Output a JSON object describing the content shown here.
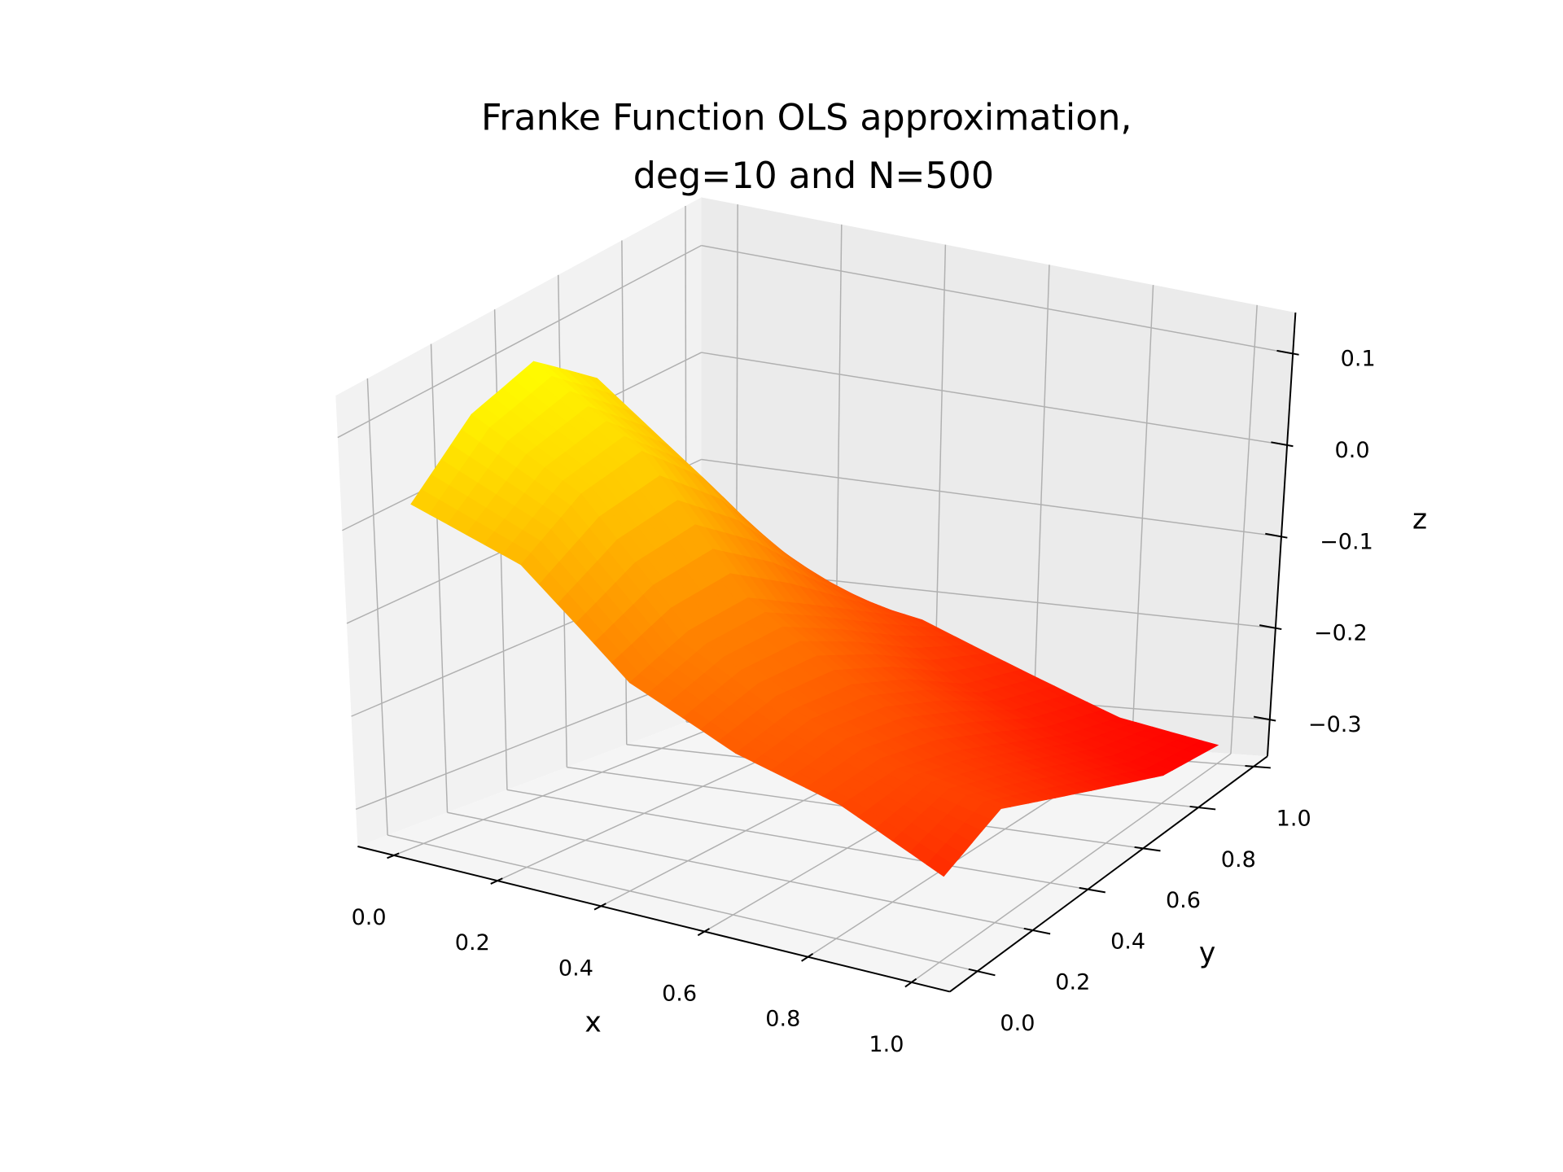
{
  "chart_data": {
    "type": "surface",
    "title": [
      "Franke Function OLS approximation,",
      "deg=10 and N=500"
    ],
    "x_label": "x",
    "y_label": "y",
    "z_label": "z",
    "x": [
      0,
      0.2,
      0.4,
      0.6,
      0.8,
      1
    ],
    "y": [
      0,
      0.2,
      0.4,
      0.6,
      0.8,
      1
    ],
    "z": [
      [
        0.02,
        0.08,
        0.1,
        0.05,
        -0.08,
        -0.2
      ],
      [
        -0.02,
        0.02,
        0.03,
        -0.03,
        -0.12,
        -0.2
      ],
      [
        -0.12,
        -0.1,
        -0.1,
        -0.14,
        -0.18,
        -0.22
      ],
      [
        -0.17,
        -0.16,
        -0.17,
        -0.2,
        -0.24,
        -0.26
      ],
      [
        -0.2,
        -0.2,
        -0.22,
        -0.25,
        -0.28,
        -0.3
      ],
      [
        -0.25,
        -0.22,
        -0.25,
        -0.28,
        -0.31,
        -0.32
      ]
    ],
    "colormap": "autumn",
    "xlim": [
      -0.07,
      1.074
    ],
    "ylim": [
      -0.1,
      1.05
    ],
    "zlim": [
      -0.34,
      0.145
    ],
    "xticks": [
      {
        "value": 0,
        "label": "0.0"
      },
      0.2,
      0.4,
      0.6,
      0.8,
      {
        "value": 1,
        "label": "1.0"
      }
    ],
    "yticks": [
      {
        "value": 0,
        "label": "0.0"
      },
      0.2,
      0.4,
      0.6,
      0.8,
      {
        "value": 1,
        "label": "1.0"
      }
    ],
    "zticks": [
      {
        "value": -0.3,
        "label": "−0.3"
      },
      {
        "value": -0.2,
        "label": "−0.2"
      },
      {
        "value": -0.1,
        "label": "−0.1"
      },
      {
        "value": 0,
        "label": "0.0"
      },
      0.1
    ],
    "grid": true
  }
}
